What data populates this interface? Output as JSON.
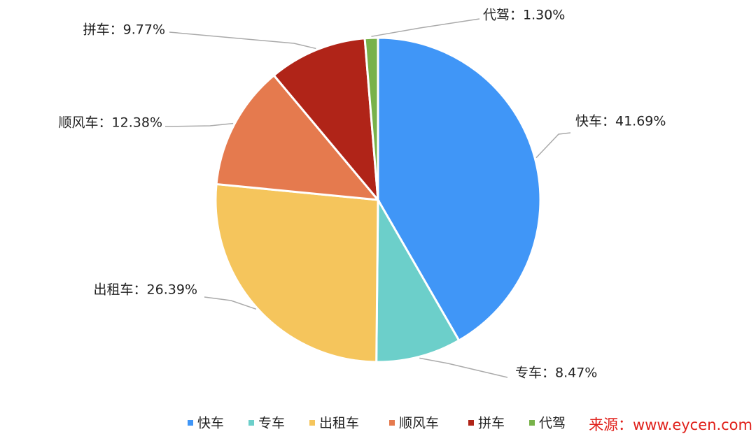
{
  "chart_data": {
    "type": "pie",
    "categories": [
      "快车",
      "专车",
      "出租车",
      "顺风车",
      "拼车",
      "代驾"
    ],
    "values": [
      41.69,
      8.47,
      26.39,
      12.38,
      9.77,
      1.3
    ],
    "value_labels": [
      "快车：41.69%",
      "专车：8.47%",
      "出租车：26.39%",
      "顺风车：12.38%",
      "拼车：9.77%",
      "代驾：1.30%"
    ],
    "colors": [
      "#4096f7",
      "#6ccfca",
      "#f5c55c",
      "#e57a4e",
      "#b02418",
      "#78b24a"
    ],
    "legend": "bottom",
    "watermark": "来源：www.eycen.com"
  }
}
